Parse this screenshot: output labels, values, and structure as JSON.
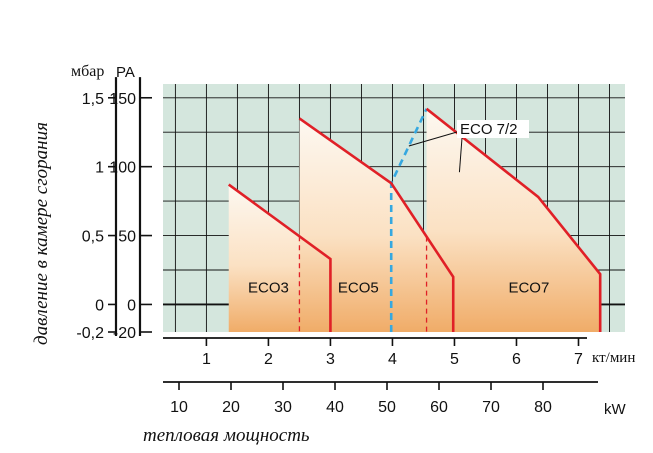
{
  "chart_data": {
    "type": "area",
    "ylabel": "давление в камере сгорания",
    "xlabel": "тепловая мощность",
    "y_axis_mbar": {
      "unit": "мбар",
      "ticks": [
        "1,5",
        "1",
        "0,5",
        "0",
        "-0,2"
      ],
      "tick_values": [
        1.5,
        1.0,
        0.5,
        0.0,
        -0.2
      ]
    },
    "y_axis_pa": {
      "unit": "PA",
      "ticks": [
        "150",
        "100",
        "50",
        "0",
        "-20"
      ],
      "tick_values": [
        150,
        100,
        50,
        0,
        -20
      ],
      "ylim": [
        -20,
        160
      ]
    },
    "x_axis_kw_main": {
      "unit": "кт/мин",
      "ticks": [
        "1",
        "2",
        "3",
        "4",
        "5",
        "6",
        "7"
      ],
      "tick_values": [
        1,
        2,
        3,
        4,
        5,
        6,
        7
      ]
    },
    "x_axis_kw": {
      "unit": "kW",
      "ticks": [
        "10",
        "20",
        "30",
        "40",
        "50",
        "60",
        "70",
        "80"
      ],
      "tick_values": [
        10,
        20,
        30,
        40,
        50,
        60,
        70,
        80
      ]
    },
    "xlim": [
      0.3,
      7.75
    ],
    "grid": true,
    "series": [
      {
        "name": "ECO 3",
        "label": "ECO3",
        "points": [
          [
            1.36,
            87
          ],
          [
            3.0,
            33
          ],
          [
            3.0,
            -20
          ]
        ],
        "label_at": [
          2.0,
          0
        ],
        "split_x": 2.5
      },
      {
        "name": "ECO 5",
        "label": "ECO5",
        "points": [
          [
            2.5,
            135
          ],
          [
            3.98,
            88
          ],
          [
            4.98,
            20
          ],
          [
            4.98,
            -20
          ]
        ],
        "label_at": [
          3.45,
          0
        ],
        "split_x": 4.55
      },
      {
        "name": "ECO 7",
        "label": "ECO7",
        "points": [
          [
            4.55,
            142
          ],
          [
            6.35,
            78
          ],
          [
            7.35,
            22
          ],
          [
            7.35,
            -20
          ]
        ],
        "label_at": [
          6.2,
          0
        ],
        "split_x": null
      },
      {
        "name": "ECO 7/2",
        "label": "ECO 7/2",
        "dashed": true,
        "points": [
          [
            3.98,
            -20
          ],
          [
            3.98,
            88
          ],
          [
            4.55,
            142
          ]
        ]
      }
    ],
    "annotations": [
      {
        "text": "ECO 7/2"
      }
    ]
  },
  "colors": {
    "grid_bg": "#d4e6dd",
    "grid_line": "#111111",
    "curve": "#e02027",
    "dashed_blue": "#35a8e0",
    "fill_top": "#fdf5ec",
    "fill_bottom": "#f0b06e"
  }
}
